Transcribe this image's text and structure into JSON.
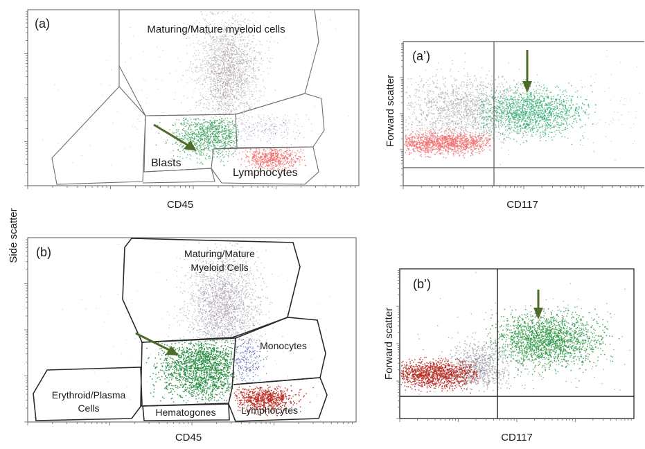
{
  "shared": {
    "y_label": "Side scatter"
  },
  "chart_data": [
    {
      "type": "scatter",
      "panel_label": "(a)",
      "xlabel": "CD45",
      "ylabel": "Side scatter",
      "xscale": "log",
      "gates": [
        {
          "name": "Maturing/Mature myeloid cells"
        },
        {
          "name": "Blasts"
        },
        {
          "name": "Lymphocytes"
        }
      ],
      "populations": [
        {
          "gate": "Maturing/Mature myeloid cells",
          "color": "#9a8f90"
        },
        {
          "gate": "Blasts",
          "color": "#2e9a52"
        },
        {
          "gate": "Lymphocytes",
          "color": "#f06a6a"
        },
        {
          "gate": "Monocytes",
          "color": "#6a6fb0"
        }
      ]
    },
    {
      "type": "scatter",
      "panel_label": "(a’)",
      "xlabel": "CD117",
      "ylabel": "Forward scatter",
      "xscale": "log",
      "populations": [
        {
          "name": "gray",
          "color": "#9a9a9a"
        },
        {
          "name": "green",
          "color": "#22a86a"
        },
        {
          "name": "red",
          "color": "#f26b6b"
        }
      ]
    },
    {
      "type": "scatter",
      "panel_label": "(b)",
      "xlabel": "CD45",
      "ylabel": "Side scatter",
      "xscale": "log",
      "gates": [
        {
          "name": "Maturing/Mature\nMyeloid Cells"
        },
        {
          "name": "Monocytes"
        },
        {
          "name": "Blasts"
        },
        {
          "name": "Erythroid/Plasma\nCells"
        },
        {
          "name": "Hematogones"
        },
        {
          "name": "Lymphocytes"
        }
      ],
      "populations": [
        {
          "gate": "Maturing/Mature Myeloid Cells",
          "color": "#8d7f95"
        },
        {
          "gate": "Blasts",
          "color": "#1f8a3a"
        },
        {
          "gate": "Monocytes",
          "color": "#2a3ea0"
        },
        {
          "gate": "Lymphocytes",
          "color": "#b8261a"
        }
      ]
    },
    {
      "type": "scatter",
      "panel_label": "(b’)",
      "xlabel": "CD117",
      "ylabel": "Forward scatter",
      "xscale": "log",
      "populations": [
        {
          "name": "gray",
          "color": "#a09aa6"
        },
        {
          "name": "green",
          "color": "#2f9a46"
        },
        {
          "name": "red",
          "color": "#b5261d"
        }
      ]
    }
  ],
  "text": {
    "a": {
      "panel": "(a)",
      "myeloid": "Maturing/Mature myeloid cells",
      "blasts": "Blasts",
      "lymph": "Lymphocytes",
      "xlabel": "CD45"
    },
    "a2": {
      "panel": "(a’)",
      "ylabel": "Forward scatter",
      "xlabel": "CD117"
    },
    "b": {
      "panel": "(b)",
      "myeloid1": "Maturing/Mature",
      "myeloid2": "Myeloid Cells",
      "mono": "Monocytes",
      "blasts": "Blasts",
      "ery1": "Erythroid/Plasma",
      "ery2": "Cells",
      "hema": "Hematogones",
      "lymph": "Lymphocytes",
      "xlabel": "CD45"
    },
    "b2": {
      "panel": "(b’)",
      "ylabel": "Forward scatter",
      "xlabel": "CD117"
    }
  }
}
